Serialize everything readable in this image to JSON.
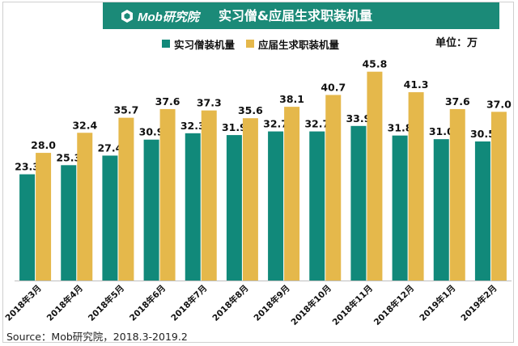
{
  "header": {
    "brand": "Mob研究院",
    "title": "实习僧&应届生求职装机量",
    "unit": "单位：万"
  },
  "colors": {
    "series_1": "#11897a",
    "series_2": "#e5b84b",
    "title_bar": "#1b8a78"
  },
  "icons": {
    "brand_logo": "mob-hexagon-logo-icon"
  },
  "source": "Source：Mob研究院，2018.3-2019.2",
  "chart_data": {
    "type": "bar",
    "title": "实习僧&应届生求职装机量",
    "unit": "单位：万",
    "categories": [
      "2018年3月",
      "2018年4月",
      "2018年5月",
      "2018年6月",
      "2018年7月",
      "2018年8月",
      "2018年9月",
      "2018年10月",
      "2018年11月",
      "2018年12月",
      "2019年1月",
      "2019年2月"
    ],
    "series": [
      {
        "name": "实习僧装机量",
        "values": [
          23.3,
          25.3,
          27.4,
          30.9,
          32.3,
          31.9,
          32.7,
          32.7,
          33.9,
          31.8,
          31.0,
          30.5
        ]
      },
      {
        "name": "应届生求职装机量",
        "values": [
          28.0,
          32.4,
          35.7,
          37.6,
          37.3,
          35.6,
          38.1,
          40.7,
          45.8,
          41.3,
          37.6,
          37.0
        ]
      }
    ],
    "legend": "top",
    "grid": false,
    "ylim": [
      0,
      50
    ]
  }
}
